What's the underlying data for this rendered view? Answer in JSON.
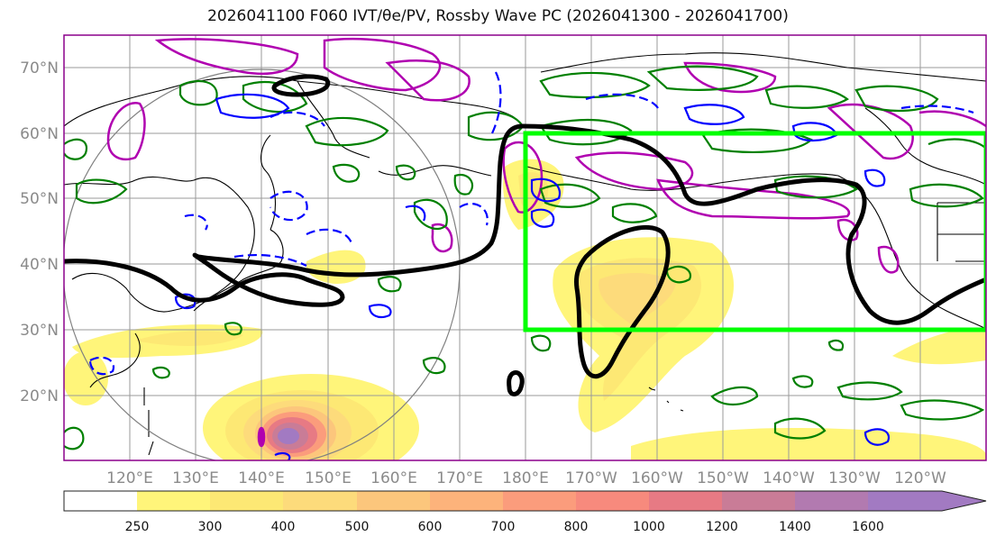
{
  "title": "2026041100 F060 IVT/θe/PV, Rossby Wave PC (2026041300 - 2026041700)",
  "map": {
    "lat_labels": [
      "70°N",
      "60°N",
      "50°N",
      "40°N",
      "30°N",
      "20°N"
    ],
    "lon_labels": [
      "120°E",
      "130°E",
      "140°E",
      "150°E",
      "160°E",
      "170°E",
      "180°E",
      "170°W",
      "160°W",
      "150°W",
      "140°W",
      "130°W",
      "120°W"
    ],
    "lat_values": [
      70,
      60,
      50,
      40,
      30,
      20
    ],
    "lon_values": [
      120,
      130,
      140,
      150,
      160,
      170,
      180,
      190,
      200,
      210,
      220,
      230,
      240
    ],
    "extent": {
      "lon_min": 110,
      "lon_max": 250,
      "lat_min": 10,
      "lat_max": 75
    },
    "highlight_box": {
      "lon_min": 180,
      "lon_max": 250,
      "lat_min": 30,
      "lat_max": 60,
      "color": "#00ff00"
    }
  },
  "colorbar": {
    "levels": [
      "250",
      "300",
      "400",
      "500",
      "600",
      "700",
      "800",
      "1000",
      "1200",
      "1400",
      "1600"
    ],
    "colors": [
      "#ffffff",
      "#fff57a",
      "#fde874",
      "#fddb7b",
      "#fcc67c",
      "#fdb37b",
      "#fb9c7c",
      "#f78a7d",
      "#e77a84",
      "#c97c97",
      "#b27ab0",
      "#a27ac2"
    ]
  },
  "colors": {
    "ivt_high": "#b27ab0",
    "pv_contour": "#b000b0",
    "theta_green": "#008000",
    "theta_blue": "#0000ff",
    "rossby_contour": "#000000",
    "coastline": "#000000"
  }
}
